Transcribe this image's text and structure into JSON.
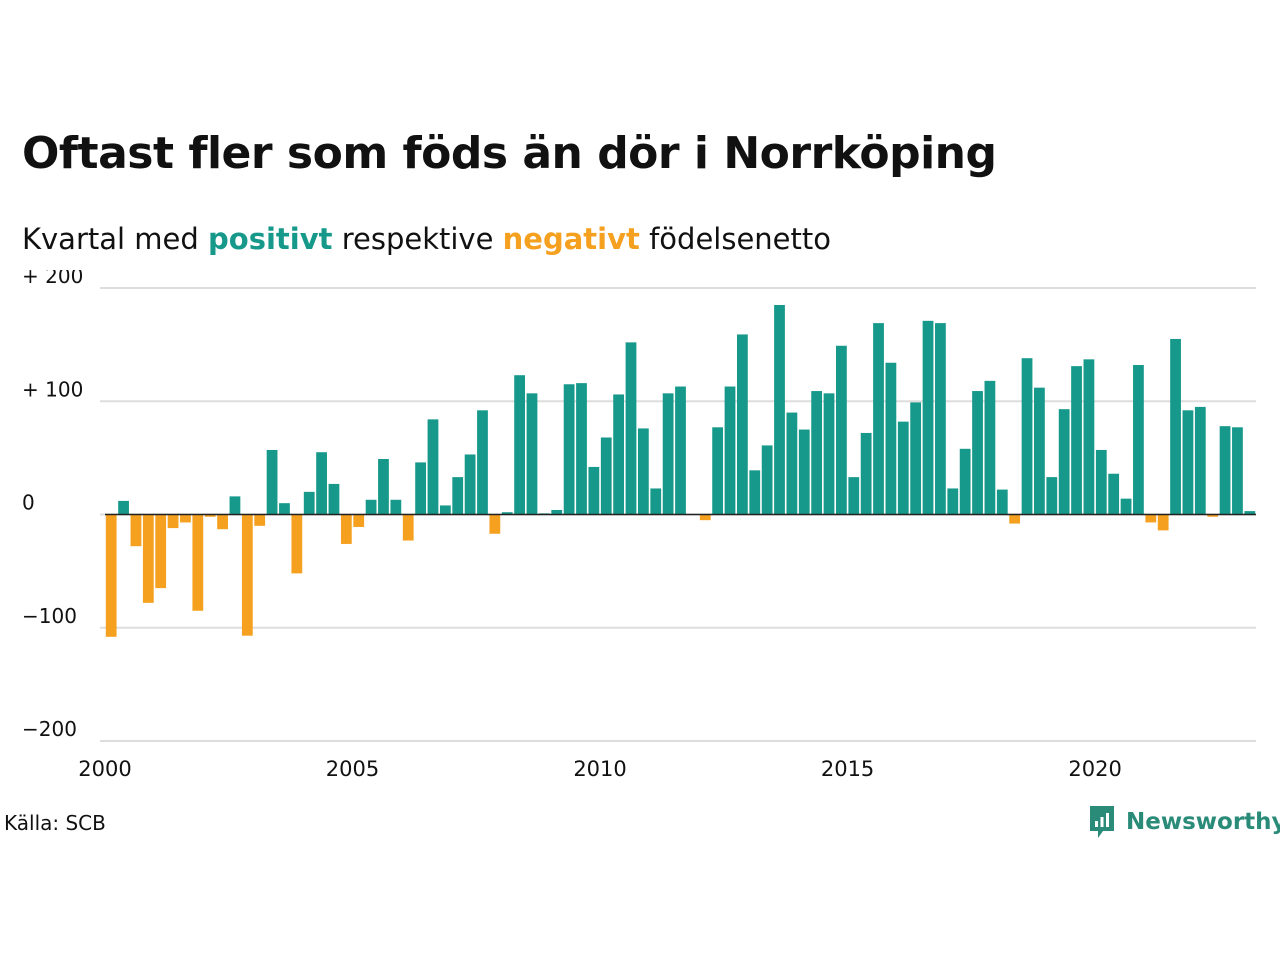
{
  "colors": {
    "positive": "#16998a",
    "negative": "#f5a01e",
    "brand": "#2b8b79",
    "grid": "#dddddd",
    "text": "#111111"
  },
  "title": "Oftast fler som föds än dör i Norrköping",
  "subtitle": {
    "before": "Kvartal med",
    "positive_word": "positivt",
    "middle": "respektive",
    "negative_word": "negativt",
    "after": "födelsenetto"
  },
  "source": "Källa: SCB",
  "brand": {
    "name": "Newsworthy",
    "icon": "newsworthy-logo-icon"
  },
  "chart_data": {
    "type": "bar",
    "title": "Oftast fler som föds än dör i Norrköping",
    "subtitle": "Kvartal med positivt respektive negativt födelsenetto",
    "xlabel": "",
    "ylabel": "",
    "ylim": [
      -200,
      200
    ],
    "xlim": [
      2000,
      2023.25
    ],
    "grid": true,
    "legend": "none",
    "y_ticks": [
      {
        "value": 200,
        "label": "+ 200"
      },
      {
        "value": 100,
        "label": "+ 100"
      },
      {
        "value": 0,
        "label": "0"
      },
      {
        "value": -100,
        "label": "−100"
      },
      {
        "value": -200,
        "label": "−200"
      }
    ],
    "x_ticks": [
      {
        "value": 2000,
        "label": "2000"
      },
      {
        "value": 2005,
        "label": "2005"
      },
      {
        "value": 2010,
        "label": "2010"
      },
      {
        "value": 2015,
        "label": "2015"
      },
      {
        "value": 2020,
        "label": "2020"
      }
    ],
    "categories": [
      "2000 Q1",
      "2000 Q2",
      "2000 Q3",
      "2000 Q4",
      "2001 Q1",
      "2001 Q2",
      "2001 Q3",
      "2001 Q4",
      "2002 Q1",
      "2002 Q2",
      "2002 Q3",
      "2002 Q4",
      "2003 Q1",
      "2003 Q2",
      "2003 Q3",
      "2003 Q4",
      "2004 Q1",
      "2004 Q2",
      "2004 Q3",
      "2004 Q4",
      "2005 Q1",
      "2005 Q2",
      "2005 Q3",
      "2005 Q4",
      "2006 Q1",
      "2006 Q2",
      "2006 Q3",
      "2006 Q4",
      "2007 Q1",
      "2007 Q2",
      "2007 Q3",
      "2007 Q4",
      "2008 Q1",
      "2008 Q2",
      "2008 Q3",
      "2008 Q4",
      "2009 Q1",
      "2009 Q2",
      "2009 Q3",
      "2009 Q4",
      "2010 Q1",
      "2010 Q2",
      "2010 Q3",
      "2010 Q4",
      "2011 Q1",
      "2011 Q2",
      "2011 Q3",
      "2011 Q4",
      "2012 Q1",
      "2012 Q2",
      "2012 Q3",
      "2012 Q4",
      "2013 Q1",
      "2013 Q2",
      "2013 Q3",
      "2013 Q4",
      "2014 Q1",
      "2014 Q2",
      "2014 Q3",
      "2014 Q4",
      "2015 Q1",
      "2015 Q2",
      "2015 Q3",
      "2015 Q4",
      "2016 Q1",
      "2016 Q2",
      "2016 Q3",
      "2016 Q4",
      "2017 Q1",
      "2017 Q2",
      "2017 Q3",
      "2017 Q4",
      "2018 Q1",
      "2018 Q2",
      "2018 Q3",
      "2018 Q4",
      "2019 Q1",
      "2019 Q2",
      "2019 Q3",
      "2019 Q4",
      "2020 Q1",
      "2020 Q2",
      "2020 Q3",
      "2020 Q4",
      "2021 Q1",
      "2021 Q2",
      "2021 Q3",
      "2021 Q4",
      "2022 Q1",
      "2022 Q2",
      "2022 Q3",
      "2022 Q4",
      "2023 Q1"
    ],
    "values": [
      -108,
      12,
      -28,
      -78,
      -65,
      -12,
      -7,
      -85,
      -2,
      -13,
      16,
      -107,
      -10,
      57,
      10,
      -52,
      20,
      55,
      27,
      -26,
      -11,
      13,
      49,
      13,
      -23,
      46,
      84,
      8,
      33,
      53,
      92,
      -17,
      2,
      123,
      107,
      1,
      4,
      115,
      116,
      42,
      68,
      106,
      152,
      76,
      23,
      107,
      113,
      0,
      -5,
      77,
      113,
      159,
      39,
      61,
      185,
      90,
      75,
      109,
      107,
      149,
      33,
      72,
      169,
      134,
      82,
      99,
      171,
      169,
      23,
      58,
      109,
      118,
      22,
      -8,
      138,
      112,
      33,
      93,
      131,
      137,
      57,
      36,
      14,
      132,
      -7,
      -14,
      155,
      92,
      95,
      -2,
      78,
      77,
      3
    ]
  }
}
